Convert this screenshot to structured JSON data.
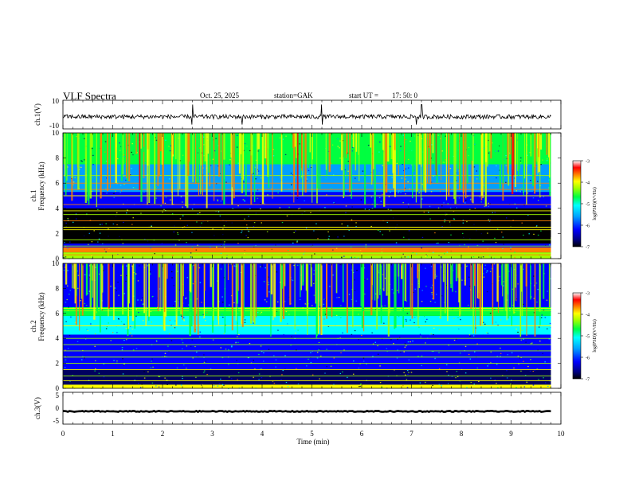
{
  "header": {
    "title": "VLF Spectra",
    "date": "Oct. 25, 2025",
    "station": "station=GAK",
    "start_label": "start  UT  =",
    "start_time": "17: 50: 0"
  },
  "chart_data": [
    {
      "type": "line",
      "panel": "ch1-waveform",
      "ylabel": "ch.1(V)",
      "ylim": [
        -10,
        10
      ],
      "yticks": [
        "10",
        "-10"
      ],
      "xlim": [
        0,
        9.8
      ],
      "baseline": -1.5,
      "description_values": {
        "typical_amplitude": 1.5,
        "spikes_at_min": [
          2.6,
          3.6,
          5.2,
          7.1,
          7.2
        ]
      }
    },
    {
      "type": "heatmap",
      "panel": "ch1-spectrogram",
      "ylabel": "ch.1",
      "ylabel2": "Frequency  (kHz)",
      "ylim": [
        0,
        10
      ],
      "yticks": [
        "0",
        "2",
        "4",
        "6",
        "8",
        "10"
      ],
      "colorbar": {
        "label": "log(PSD)(V²/Hz)",
        "range": [
          -7,
          -3
        ],
        "ticks": [
          "-3",
          "-4",
          "-5",
          "-6",
          "-7"
        ]
      },
      "bands": [
        {
          "f0": 0.0,
          "f1": 0.5,
          "level": -4.2
        },
        {
          "f0": 0.5,
          "f1": 0.9,
          "level": -3.6
        },
        {
          "f0": 0.9,
          "f1": 1.2,
          "level": -6.0
        },
        {
          "f0": 1.2,
          "f1": 4.0,
          "level": -6.9
        },
        {
          "f0": 4.0,
          "f1": 5.3,
          "level": -6.3
        },
        {
          "f0": 5.3,
          "f1": 7.5,
          "level": -5.6
        },
        {
          "f0": 7.5,
          "f1": 10.0,
          "level": -5.0
        }
      ],
      "lines_khz": [
        0.3,
        0.6,
        0.75,
        1.0,
        1.5,
        2.3,
        2.5,
        3.0,
        3.5,
        3.8,
        4.3,
        5.0,
        5.5,
        6.0,
        6.6
      ]
    },
    {
      "type": "heatmap",
      "panel": "ch2-spectrogram",
      "ylabel": "ch.2",
      "ylabel2": "Frequency  (kHz)",
      "ylim": [
        0,
        10
      ],
      "yticks": [
        "0",
        "2",
        "4",
        "6",
        "8",
        "10"
      ],
      "colorbar": {
        "label": "log(PSD)(V²/Hz)",
        "range": [
          -7,
          -3
        ],
        "ticks": [
          "-3",
          "-4",
          "-5",
          "-6",
          "-7"
        ]
      },
      "bands": [
        {
          "f0": 0.0,
          "f1": 0.3,
          "level": -4.0
        },
        {
          "f0": 0.3,
          "f1": 1.5,
          "level": -6.5
        },
        {
          "f0": 1.5,
          "f1": 3.0,
          "level": -5.9
        },
        {
          "f0": 3.0,
          "f1": 4.3,
          "level": -6.2
        },
        {
          "f0": 4.3,
          "f1": 5.8,
          "level": -5.3
        },
        {
          "f0": 5.8,
          "f1": 6.5,
          "level": -4.6
        },
        {
          "f0": 6.5,
          "f1": 10.0,
          "level": -6.3
        }
      ],
      "lines_khz": [
        0.6,
        1.0,
        1.5,
        2.0,
        2.5,
        3.0,
        3.5,
        4.0,
        5.0,
        6.2,
        6.4
      ]
    },
    {
      "type": "line",
      "panel": "ch3-waveform",
      "ylabel": "ch.3(V)",
      "ylim": [
        -5,
        5
      ],
      "yticks": [
        "5",
        "0",
        "-5"
      ],
      "xlim": [
        0,
        9.8
      ],
      "baseline": -1.0
    }
  ],
  "xaxis": {
    "label": "Time  (min)",
    "range": [
      0,
      10
    ],
    "ticks": [
      "0",
      "1",
      "2",
      "3",
      "4",
      "5",
      "6",
      "7",
      "8",
      "9",
      "10"
    ]
  },
  "colors": {
    "axis": "#000000",
    "cmap": [
      "#000000",
      "#000060",
      "#0000ff",
      "#00a0ff",
      "#00ffff",
      "#00ff40",
      "#a0ff00",
      "#ffff00",
      "#ff8000",
      "#ff0000",
      "#ffffff"
    ]
  }
}
